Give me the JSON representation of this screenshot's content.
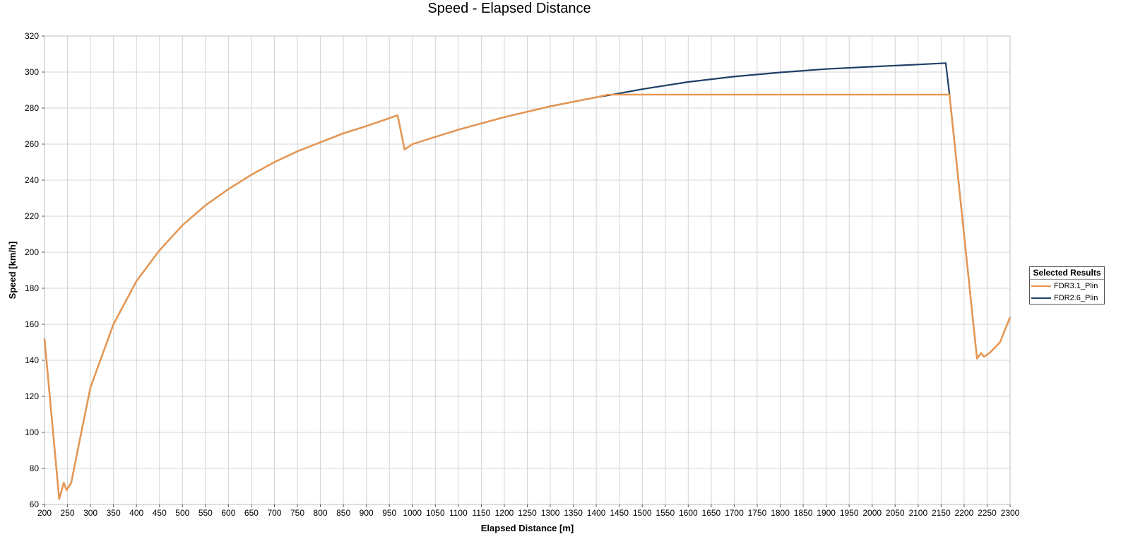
{
  "chart_data": {
    "type": "line",
    "title": "Speed - Elapsed Distance",
    "xlabel": "Elapsed Distance [m]",
    "ylabel": "Speed [km/h]",
    "xlim": [
      200,
      2300
    ],
    "ylim": [
      60,
      320
    ],
    "x_ticks": [
      200,
      250,
      300,
      350,
      400,
      450,
      500,
      550,
      600,
      650,
      700,
      750,
      800,
      850,
      900,
      950,
      1000,
      1050,
      1100,
      1150,
      1200,
      1250,
      1300,
      1350,
      1400,
      1450,
      1500,
      1550,
      1600,
      1650,
      1700,
      1750,
      1800,
      1850,
      1900,
      1950,
      2000,
      2050,
      2100,
      2150,
      2200,
      2250,
      2300
    ],
    "y_ticks": [
      60,
      80,
      100,
      120,
      140,
      160,
      180,
      200,
      220,
      240,
      260,
      280,
      300,
      320
    ],
    "grid": true,
    "legend": {
      "title": "Selected Results",
      "placement": "right"
    },
    "series": [
      {
        "name": "FDR2.6_Plin",
        "color": "#1f3f66",
        "points": [
          [
            200,
            152
          ],
          [
            232,
            63
          ],
          [
            242,
            72
          ],
          [
            248,
            68
          ],
          [
            258,
            72
          ],
          [
            280,
            100
          ],
          [
            300,
            125
          ],
          [
            350,
            160
          ],
          [
            400,
            184
          ],
          [
            450,
            201
          ],
          [
            500,
            215
          ],
          [
            550,
            226
          ],
          [
            600,
            235
          ],
          [
            650,
            243
          ],
          [
            700,
            250
          ],
          [
            750,
            256
          ],
          [
            800,
            261
          ],
          [
            850,
            266
          ],
          [
            900,
            270
          ],
          [
            968,
            276
          ],
          [
            983,
            257
          ],
          [
            1000,
            260
          ],
          [
            1100,
            268
          ],
          [
            1200,
            275
          ],
          [
            1300,
            281
          ],
          [
            1400,
            286
          ],
          [
            1425,
            287
          ],
          [
            1500,
            290.5
          ],
          [
            1600,
            294.5
          ],
          [
            1700,
            297.5
          ],
          [
            1800,
            299.8
          ],
          [
            1900,
            301.7
          ],
          [
            2000,
            303
          ],
          [
            2100,
            304.2
          ],
          [
            2160,
            305
          ],
          [
            2168,
            288
          ],
          [
            2228,
            141
          ],
          [
            2237,
            144
          ],
          [
            2243,
            142
          ],
          [
            2255,
            144
          ],
          [
            2278,
            150
          ],
          [
            2300,
            164
          ]
        ]
      },
      {
        "name": "FDR3.1_Plin",
        "color": "#e8964f",
        "points": [
          [
            200,
            152
          ],
          [
            232,
            63
          ],
          [
            242,
            72
          ],
          [
            248,
            68
          ],
          [
            258,
            72
          ],
          [
            280,
            100
          ],
          [
            300,
            125
          ],
          [
            350,
            160
          ],
          [
            400,
            184
          ],
          [
            450,
            201
          ],
          [
            500,
            215
          ],
          [
            550,
            226
          ],
          [
            600,
            235
          ],
          [
            650,
            243
          ],
          [
            700,
            250
          ],
          [
            750,
            256
          ],
          [
            800,
            261
          ],
          [
            850,
            266
          ],
          [
            900,
            270
          ],
          [
            968,
            276
          ],
          [
            983,
            257
          ],
          [
            1000,
            260
          ],
          [
            1100,
            268
          ],
          [
            1200,
            275
          ],
          [
            1300,
            281
          ],
          [
            1400,
            286
          ],
          [
            1425,
            287.5
          ],
          [
            2168,
            287.5
          ],
          [
            2228,
            141
          ],
          [
            2237,
            144
          ],
          [
            2243,
            142
          ],
          [
            2255,
            144
          ],
          [
            2278,
            150
          ],
          [
            2300,
            164
          ]
        ]
      }
    ]
  }
}
